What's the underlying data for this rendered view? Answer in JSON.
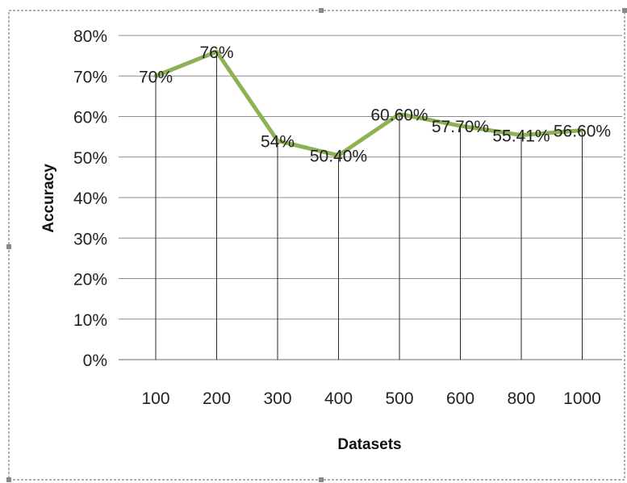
{
  "chart_data": {
    "type": "line",
    "categories": [
      "100",
      "200",
      "300",
      "400",
      "500",
      "600",
      "800",
      "1000"
    ],
    "values": [
      70,
      76,
      54,
      50.4,
      60.6,
      57.7,
      55.41,
      56.6
    ],
    "data_labels": [
      "70%",
      "76%",
      "54%",
      "50.40%",
      "60.60%",
      "57.70%",
      "55.41%",
      "56.60%"
    ],
    "xlabel": "Datasets",
    "ylabel": "Accuracy",
    "ylim": [
      0,
      80
    ],
    "y_ticks": [
      "0%",
      "10%",
      "20%",
      "30%",
      "40%",
      "50%",
      "60%",
      "70%",
      "80%"
    ],
    "grid": "horizontal",
    "drop_lines": true,
    "legend": "none",
    "colors": {
      "line": "#8db255",
      "grid": "#8c8c8c",
      "drop_line": "#262626",
      "frame": "#999999"
    }
  }
}
